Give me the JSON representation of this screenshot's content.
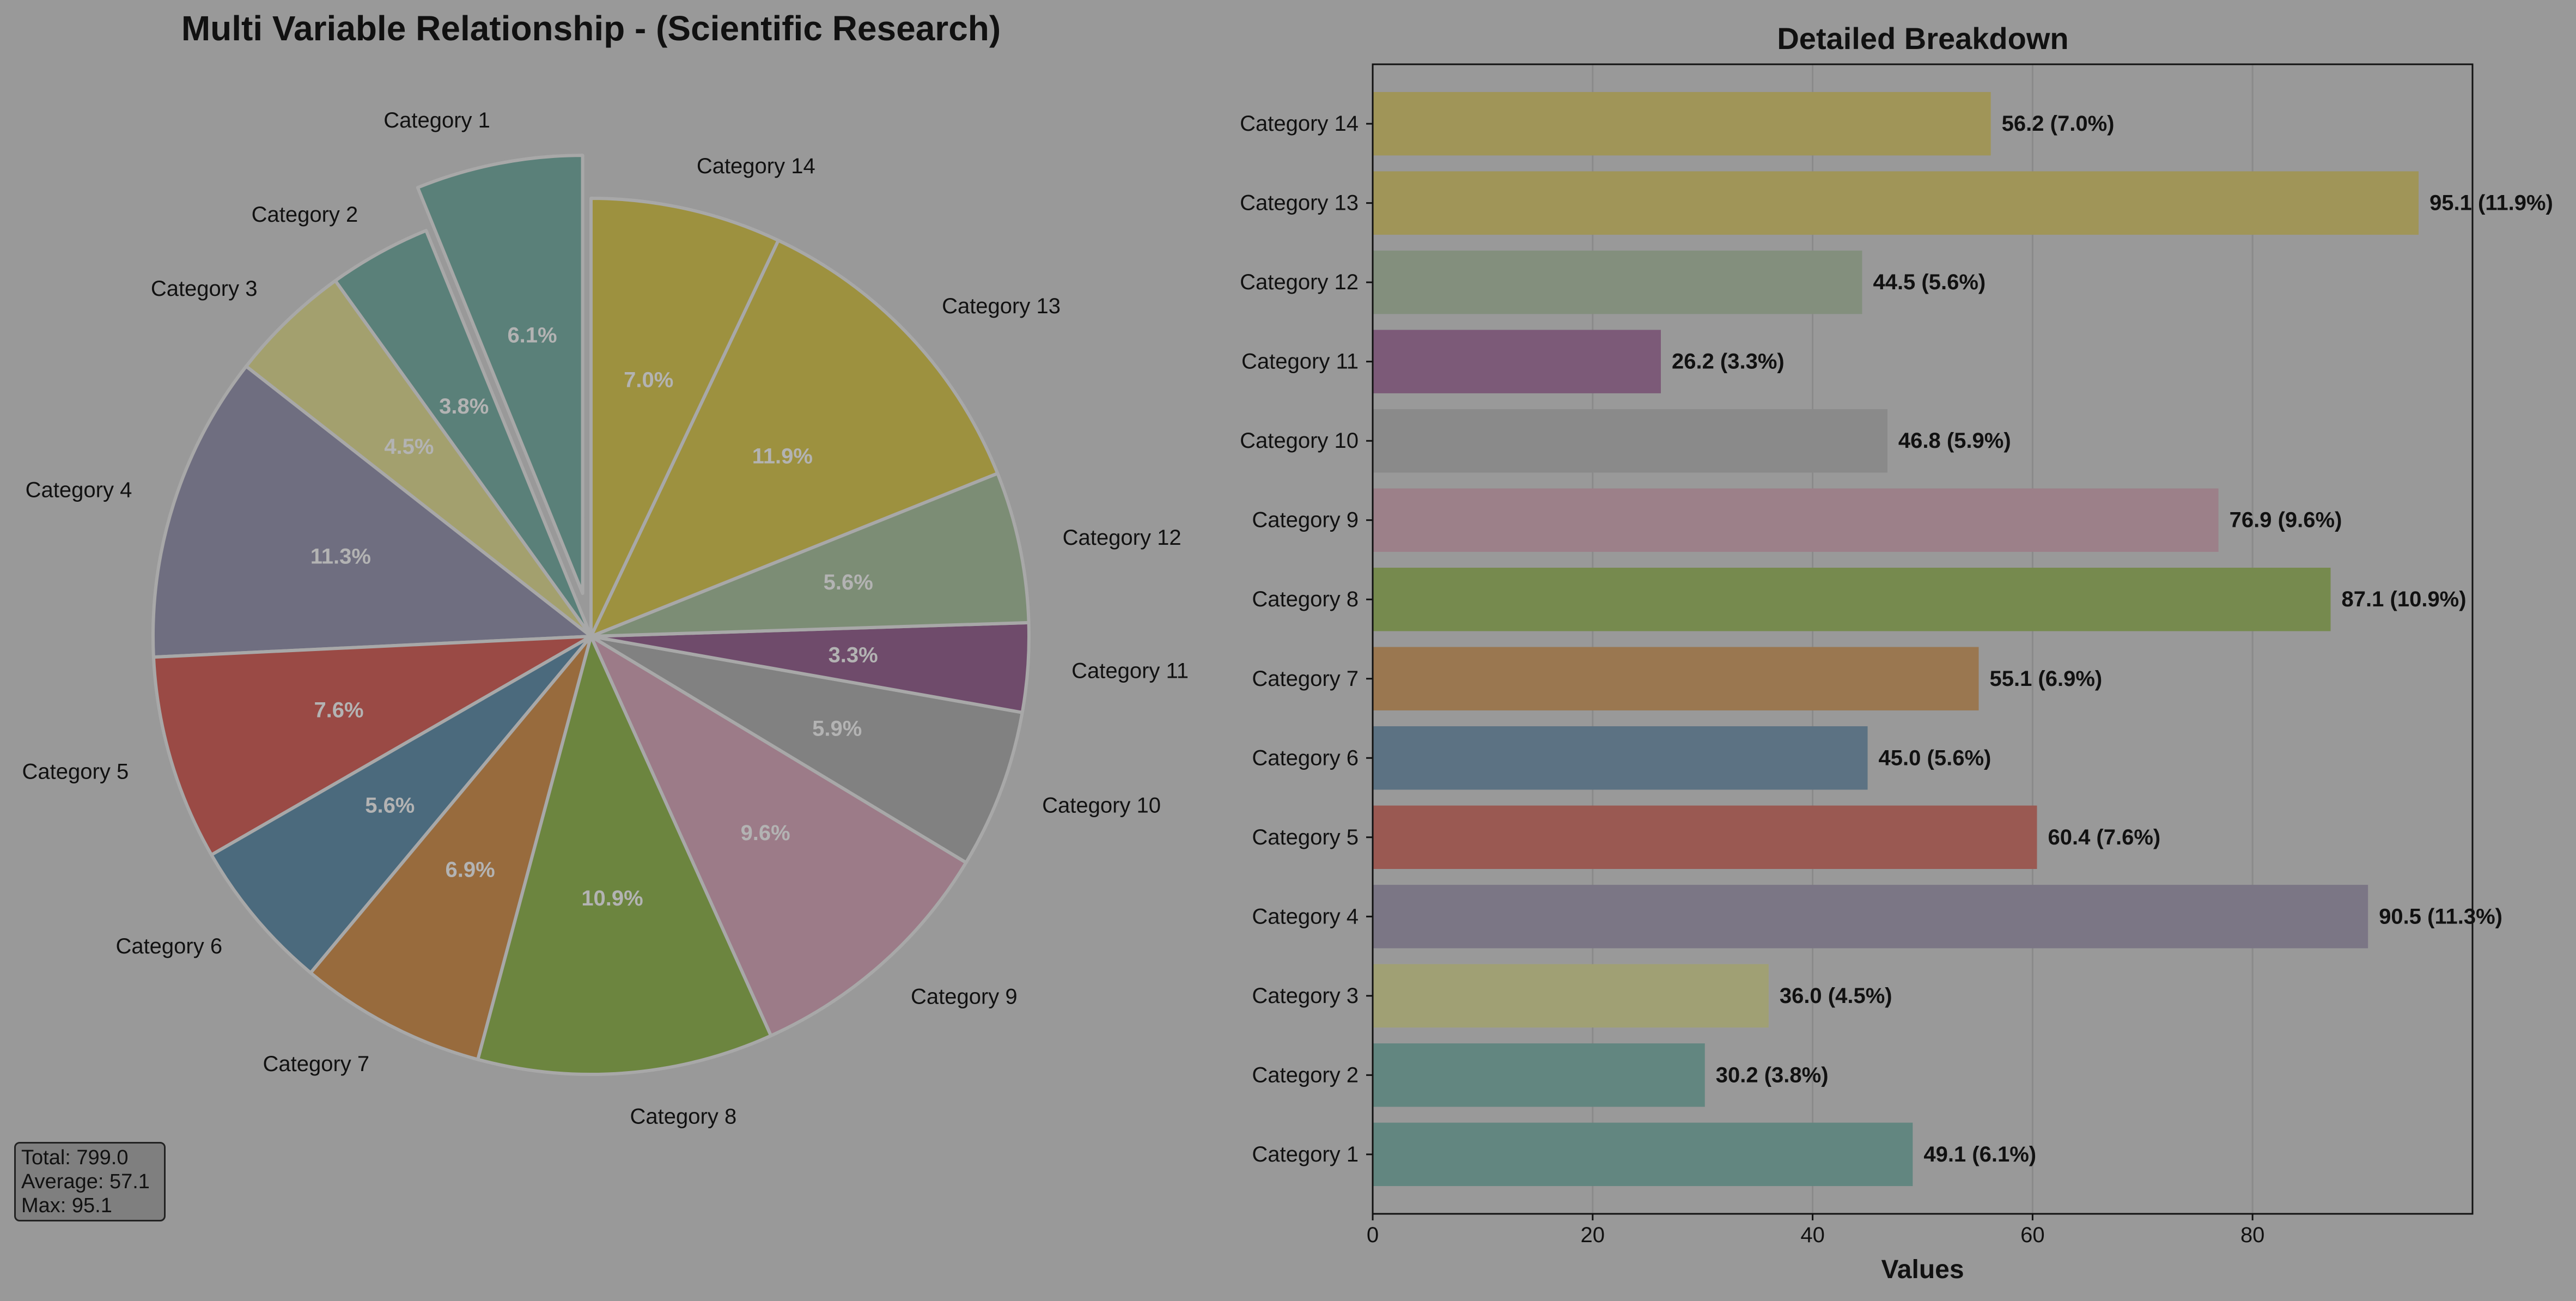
{
  "colors": {
    "background": "#999999",
    "pie": [
      "#5a8079",
      "#5a8079",
      "#a3a06e",
      "#6f6e80",
      "#9a4a45",
      "#4b6a7d",
      "#986b3d",
      "#6c853f",
      "#9c7b88",
      "#818181",
      "#6f4b6b",
      "#7c8d75",
      "#9d913f",
      "#9d913f"
    ],
    "bar": [
      "#628680",
      "#628680",
      "#a0a074",
      "#7b7685",
      "#9a5952",
      "#5c7283",
      "#9a7750",
      "#768a4e",
      "#9c8089",
      "#8a8a8a",
      "#7c5a78",
      "#838f7d",
      "#a09558",
      "#a09558"
    ]
  },
  "stats_box": {
    "total": "Total: 799.0",
    "average": "Average: 57.1",
    "max": "Max: 95.1"
  },
  "chart_data": [
    {
      "type": "pie",
      "title": "Multi Variable Relationship - (Scientific Research)",
      "categories": [
        "Category 1",
        "Category 2",
        "Category 3",
        "Category 4",
        "Category 5",
        "Category 6",
        "Category 7",
        "Category 8",
        "Category 9",
        "Category 10",
        "Category 11",
        "Category 12",
        "Category 13",
        "Category 14"
      ],
      "values": [
        49.1,
        30.2,
        36.0,
        90.5,
        60.4,
        45.0,
        55.1,
        87.1,
        76.9,
        46.8,
        26.2,
        44.5,
        95.1,
        56.2
      ],
      "pct_labels": [
        "6.1%",
        "3.8%",
        "4.5%",
        "11.3%",
        "7.6%",
        "5.6%",
        "6.9%",
        "10.9%",
        "9.6%",
        "5.9%",
        "3.3%",
        "5.6%",
        "11.9%",
        "7.0%"
      ],
      "exploded": [
        "Category 1"
      ]
    },
    {
      "type": "bar",
      "orientation": "horizontal",
      "title": "Detailed Breakdown",
      "xlabel": "Values",
      "ylabel": "",
      "categories": [
        "Category 1",
        "Category 2",
        "Category 3",
        "Category 4",
        "Category 5",
        "Category 6",
        "Category 7",
        "Category 8",
        "Category 9",
        "Category 10",
        "Category 11",
        "Category 12",
        "Category 13",
        "Category 14"
      ],
      "values": [
        49.1,
        30.2,
        36.0,
        90.5,
        60.4,
        45.0,
        55.1,
        87.1,
        76.9,
        46.8,
        26.2,
        44.5,
        95.1,
        56.2
      ],
      "data_labels": [
        "49.1 (6.1%)",
        "30.2 (3.8%)",
        "36.0 (4.5%)",
        "90.5 (11.3%)",
        "60.4 (7.6%)",
        "45.0 (5.6%)",
        "55.1 (6.9%)",
        "87.1 (10.9%)",
        "76.9 (9.6%)",
        "46.8 (5.9%)",
        "26.2 (3.3%)",
        "44.5 (5.6%)",
        "95.1 (11.9%)",
        "56.2 (7.0%)"
      ],
      "xticks": [
        "0",
        "20",
        "40",
        "60",
        "80"
      ],
      "xtick_values": [
        0,
        20,
        40,
        60,
        80
      ],
      "xlim": [
        0,
        100
      ],
      "grid": "vertical"
    }
  ]
}
